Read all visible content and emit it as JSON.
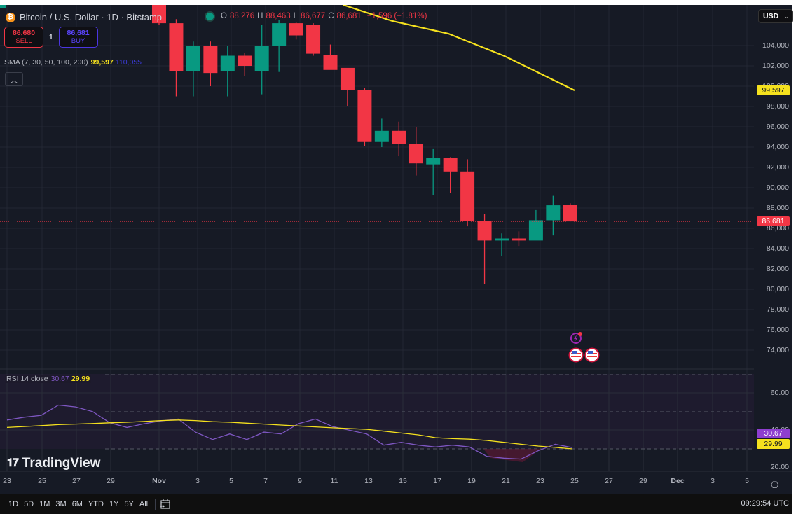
{
  "header": {
    "symbol_title": "Bitcoin / U.S. Dollar · 1D · Bitstamp",
    "ohlc": {
      "o_label": "O",
      "o_value": "88,276",
      "h_label": "H",
      "h_value": "88,463",
      "l_label": "L",
      "l_value": "86,677",
      "c_label": "C",
      "c_value": "86,681",
      "change": "−1,596 (−1.81%)"
    },
    "currency": "USD"
  },
  "trade": {
    "sell_price": "86,680",
    "sell_label": "SELL",
    "quantity": "1",
    "buy_price": "86,681",
    "buy_label": "BUY"
  },
  "indicators": {
    "sma_label": "SMA (7, 30, 50, 100, 200)",
    "sma_value_1": "99,597",
    "sma_value_2": "110,055",
    "rsi_label": "RSI 14 close",
    "rsi_value": "30.67",
    "rsi_ma_value": "29.99"
  },
  "price_axis": {
    "labels": [
      "104,000",
      "102,000",
      "100,000",
      "98,000",
      "96,000",
      "94,000",
      "92,000",
      "90,000",
      "88,000",
      "86,000",
      "84,000",
      "82,000",
      "80,000",
      "78,000",
      "76,000",
      "74,000"
    ],
    "last_price_badge": "86,681",
    "sma_badge": "99,597"
  },
  "rsi_axis": {
    "labels": [
      "60.00",
      "40.00",
      "20.00"
    ],
    "rsi_badge": "30.67",
    "rsi_ma_badge": "29.99"
  },
  "time_axis": {
    "labels": [
      "23",
      "25",
      "27",
      "29",
      "Nov",
      "3",
      "5",
      "7",
      "9",
      "11",
      "13",
      "15",
      "17",
      "19",
      "21",
      "23",
      "25",
      "27",
      "29",
      "Dec",
      "3",
      "5"
    ]
  },
  "bottom_bar": {
    "ranges": [
      "1D",
      "5D",
      "1M",
      "3M",
      "6M",
      "YTD",
      "1Y",
      "5Y",
      "All"
    ],
    "clock": "09:29:54 UTC"
  },
  "watermark": "TradingView",
  "colors": {
    "background": "#161a25",
    "up": "#089981",
    "down": "#f23645",
    "sma": "#f5e11e",
    "rsi": "#7e57c2",
    "rsi_ma": "#f5e11e"
  },
  "chart_data": [
    {
      "type": "candlestick",
      "title": "Bitcoin / U.S. Dollar · 1D · Bitstamp",
      "ylabel": "USD",
      "ylim": [
        73000,
        105500
      ],
      "grid": true,
      "x": [
        "Nov 1",
        "Nov 2",
        "Nov 3",
        "Nov 4",
        "Nov 5",
        "Nov 6",
        "Nov 7",
        "Nov 8",
        "Nov 9",
        "Nov 10",
        "Nov 11",
        "Nov 12",
        "Nov 13",
        "Nov 14",
        "Nov 15",
        "Nov 16",
        "Nov 17",
        "Nov 18",
        "Nov 19",
        "Nov 20",
        "Nov 21",
        "Nov 22",
        "Nov 23",
        "Nov 24",
        "Nov 25"
      ],
      "open": [
        110000,
        106200,
        101500,
        104000,
        101500,
        103000,
        101500,
        104000,
        106200,
        106000,
        103100,
        101800,
        99600,
        94500,
        95600,
        94300,
        92300,
        92900,
        91600,
        86700,
        84800,
        85000,
        84800,
        86800,
        88276
      ],
      "high": [
        110500,
        106600,
        104400,
        104400,
        104000,
        103300,
        106000,
        106500,
        106300,
        106200,
        104100,
        100200,
        99800,
        96800,
        96500,
        96000,
        93800,
        93000,
        92800,
        87400,
        85500,
        85700,
        87800,
        89200,
        88463
      ],
      "low": [
        106000,
        99000,
        99000,
        100000,
        99000,
        101000,
        99200,
        101400,
        104600,
        103000,
        102300,
        98000,
        94100,
        94000,
        93100,
        91200,
        89300,
        89500,
        86200,
        80500,
        83300,
        84200,
        86000,
        85300,
        86677
      ],
      "close": [
        106200,
        101500,
        104000,
        101300,
        103000,
        102000,
        104000,
        106200,
        105000,
        103200,
        101600,
        99600,
        94500,
        95600,
        94300,
        92400,
        92900,
        91600,
        86700,
        84800,
        85000,
        84800,
        86800,
        88270,
        86681
      ],
      "overlays": [
        {
          "name": "SMA (7,30,50,100,200) – line 1",
          "color": "#f5e11e",
          "last_value": 99597,
          "points": [
            [
              "Nov 11",
              106800
            ],
            [
              "Nov 15",
              104500
            ],
            [
              "Nov 18",
              103300
            ],
            [
              "Nov 21",
              101500
            ],
            [
              "Nov 25",
              99597
            ]
          ]
        }
      ],
      "markers": [
        "economic event icon (Nov 25)",
        "US flag event icon (Nov 25)",
        "US flag event icon (Nov 26)"
      ]
    },
    {
      "type": "line",
      "title": "RSI 14 close",
      "ylim": [
        18,
        72
      ],
      "bands": {
        "upper": 70,
        "middle": 50,
        "lower": 30
      },
      "x": [
        "Oct 23",
        "Oct 24",
        "Oct 25",
        "Oct 26",
        "Oct 27",
        "Oct 28",
        "Oct 29",
        "Oct 30",
        "Oct 31",
        "Nov 1",
        "Nov 2",
        "Nov 3",
        "Nov 4",
        "Nov 5",
        "Nov 6",
        "Nov 7",
        "Nov 8",
        "Nov 9",
        "Nov 10",
        "Nov 11",
        "Nov 12",
        "Nov 13",
        "Nov 14",
        "Nov 15",
        "Nov 16",
        "Nov 17",
        "Nov 18",
        "Nov 19",
        "Nov 20",
        "Nov 21",
        "Nov 22",
        "Nov 23",
        "Nov 24",
        "Nov 25"
      ],
      "series": [
        {
          "name": "RSI",
          "color": "#7e57c2",
          "values": [
            45.5,
            47,
            48,
            53.5,
            52.5,
            50,
            44,
            41.5,
            43.5,
            45,
            46,
            39,
            35,
            38,
            35,
            39,
            38,
            43.5,
            46,
            42,
            40,
            38,
            32,
            33.5,
            32,
            31,
            32,
            31,
            26,
            25,
            24.5,
            29,
            32.5,
            30.67
          ]
        },
        {
          "name": "RSI-based MA",
          "color": "#f5e11e",
          "values": [
            41.5,
            42,
            42.5,
            43,
            43.3,
            43.6,
            44,
            44.3,
            44.7,
            45.2,
            45.5,
            45.2,
            44.6,
            44.3,
            43.8,
            43.3,
            42.8,
            42.3,
            41.8,
            41.3,
            40.9,
            40.5,
            39.5,
            38.5,
            37.5,
            36,
            35.5,
            35.2,
            34.5,
            33.5,
            32.5,
            31.5,
            30.8,
            29.99
          ]
        }
      ]
    }
  ]
}
